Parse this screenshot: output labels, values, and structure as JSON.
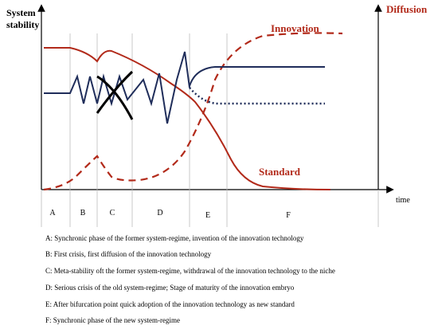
{
  "axes": {
    "y_label": "System stability",
    "y2_label": "Diffusion",
    "x_label": "time"
  },
  "curve_labels": {
    "innovation": "Innovation",
    "standard": "Standard"
  },
  "phases": [
    "A",
    "B",
    "C",
    "D",
    "E",
    "F"
  ],
  "captions": [
    "A: Synchronic phase of the former system-regime, invention of the innovation technology",
    "B: First crisis, first diffusion of the innovation technology",
    "C: Meta-stability oft the former system-regime, withdrawal of the innovation technology to the niche",
    "D: Serious crisis of the old system-regime; Stage of maturity of the innovation embryo",
    "E: After bifurcation point quick adoption of the innovation technology as new standard",
    "F: Synchronic phase of the new system-regime"
  ]
}
